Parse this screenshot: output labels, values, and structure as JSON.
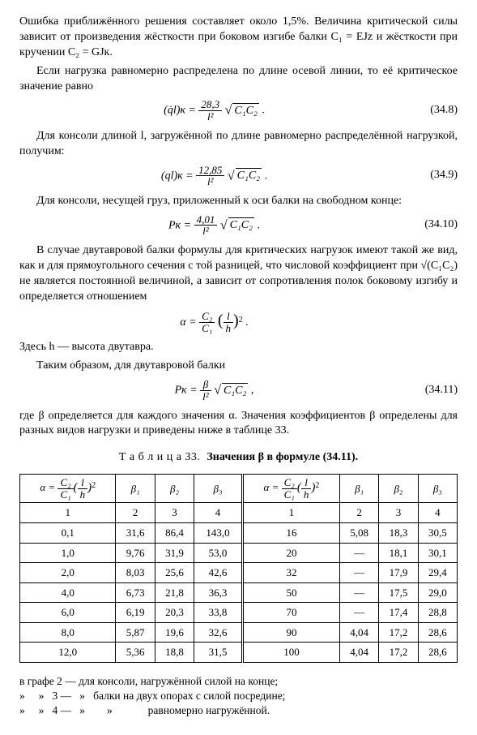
{
  "para1": "Ошибка приближённого решения составляет около 1,5%. Величина критической силы зависит от произведения жёсткости при боковом изгибе балки C₁ = EJz и жёсткости при кручении C₂ = GJк.",
  "para2": "Если нагрузка равномерно распределена по длине осевой линии, то её критическое значение равно",
  "eq348_lhs": "(q̇l)к =",
  "eq348_num": "28,3",
  "eq348_den": "l²",
  "eq_c1c2": "C₁C₂",
  "eq_num_348": "(34.8)",
  "para3": "Для консоли длиной l, загружённой по длине равномерно распределённой нагрузкой, получим:",
  "eq349_lhs": "(ql)к =",
  "eq349_num": "12,85",
  "eq349_den": "l²",
  "eq_num_349": "(34.9)",
  "para4": "Для консоли, несущей груз, приложенный к оси балки на свободном конце:",
  "eq3410_lhs": "Pк =",
  "eq3410_num": "4,01",
  "eq3410_den": "l²",
  "eq_num_3410": "(34.10)",
  "para5": "В случае двутавровой балки формулы для критических нагрузок имеют такой же вид, как и для прямоугольного сечения с той разницей, что числовой коэффициент при √(C₁C₂) не является постоянной величиной, а зависит от сопротивления полок боковому изгибу и определяется отношением",
  "eq_alpha_lhs": "α =",
  "eq_alpha_num": "C₂",
  "eq_alpha_den": "C₁",
  "eq_alpha_ratio_num": "l",
  "eq_alpha_ratio_den": "h",
  "para6a": "Здесь h — высота двутавра.",
  "para6b": "Таким образом, для двутавровой балки",
  "eq3411_lhs": "Pк =",
  "eq3411_num": "β",
  "eq3411_den": "l²",
  "eq_num_3411": "(34.11)",
  "para7": "где β определяется для каждого значения α. Значения коэффициентов β определены для разных видов нагрузки и приведены ниже в таблице 33.",
  "table_caption_a": "Т а б л и ц а  33.",
  "table_caption_b": "Значения β в формуле (34.11).",
  "header_alpha": "α =",
  "header_b1": "β₁",
  "header_b2": "β₂",
  "header_b3": "β₃",
  "subhead": [
    "1",
    "2",
    "3",
    "4",
    "1",
    "2",
    "3",
    "4"
  ],
  "rows_left": [
    [
      "0,1",
      "31,6",
      "86,4",
      "143,0"
    ],
    [
      "1,0",
      "9,76",
      "31,9",
      "53,0"
    ],
    [
      "2,0",
      "8,03",
      "25,6",
      "42,6"
    ],
    [
      "4,0",
      "6,73",
      "21,8",
      "36,3"
    ],
    [
      "6,0",
      "6,19",
      "20,3",
      "33,8"
    ],
    [
      "8,0",
      "5,87",
      "19,6",
      "32,6"
    ],
    [
      "12,0",
      "5,36",
      "18,8",
      "31,5"
    ]
  ],
  "rows_right": [
    [
      "16",
      "5,08",
      "18,3",
      "30,5"
    ],
    [
      "20",
      "—",
      "18,1",
      "30,1"
    ],
    [
      "32",
      "—",
      "17,9",
      "29,4"
    ],
    [
      "50",
      "—",
      "17,5",
      "29,0"
    ],
    [
      "70",
      "—",
      "17,4",
      "28,8"
    ],
    [
      "90",
      "4,04",
      "17,2",
      "28,6"
    ],
    [
      "100",
      "4,04",
      "17,2",
      "28,6"
    ]
  ],
  "note1": "в графе 2 — для консоли, нагружённой силой на конце;",
  "note2": "»     »   3 —   »   балки на двух опорах с силой посредине;",
  "note3": "»     »   4 —   »        »             равномерно нагружённой."
}
